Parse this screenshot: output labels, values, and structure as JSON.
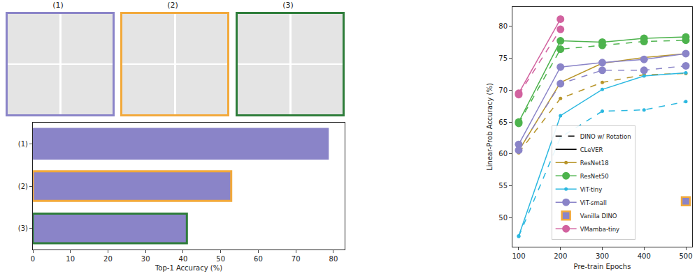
{
  "image_panels": [
    {
      "label": "(1)",
      "color": "#8a84c8"
    },
    {
      "label": "(2)",
      "color": "#f2a93b"
    },
    {
      "label": "(3)",
      "color": "#2e7d3a"
    }
  ],
  "chart_data": [
    {
      "type": "bar",
      "orientation": "horizontal",
      "categories": [
        "(1)",
        "(2)",
        "(3)"
      ],
      "values": [
        78.5,
        52.8,
        41.0
      ],
      "color": "#8a84c8",
      "x_label": "Top-1 Accuracy (%)",
      "xlim": [
        0,
        83
      ],
      "xticks": [
        0,
        10,
        20,
        30,
        40,
        50,
        60,
        70,
        80
      ],
      "grid": false
    },
    {
      "type": "line",
      "x": [
        100,
        200,
        300,
        400,
        500
      ],
      "x_label": "Pre-train Epochs",
      "y_label": "Linear-Prob Accuracy (%)",
      "xlim": [
        85,
        515
      ],
      "xticks": [
        100,
        200,
        300,
        400,
        500
      ],
      "ylim": [
        45.5,
        83
      ],
      "yticks": [
        50,
        55,
        60,
        65,
        70,
        75,
        80
      ],
      "grid": false,
      "legend": "lower center",
      "legend_styles": [
        {
          "name": "DINO w/ Rotation",
          "line_style": "dashed"
        },
        {
          "name": "CLeVER",
          "line_style": "solid"
        }
      ],
      "series": [
        {
          "name": "ResNet18",
          "color": "#b8952a",
          "line_style": "solid",
          "marker": "dot",
          "values": [
            60.5,
            71.2,
            74.2,
            75.1,
            75.7
          ]
        },
        {
          "name": "ResNet18",
          "color": "#b8952a",
          "line_style": "dashed",
          "marker": "dot",
          "values": [
            60.2,
            68.7,
            71.2,
            72.4,
            72.6
          ]
        },
        {
          "name": "ResNet50",
          "color": "#4db34d",
          "line_style": "solid",
          "marker": "circle",
          "values": [
            65.0,
            77.7,
            77.5,
            78.1,
            78.3
          ]
        },
        {
          "name": "ResNet50",
          "color": "#4db34d",
          "line_style": "dashed",
          "marker": "circle",
          "values": [
            64.8,
            76.4,
            77.0,
            77.6,
            77.8
          ]
        },
        {
          "name": "ViT-tiny",
          "color": "#2bb8e0",
          "line_style": "solid",
          "marker": "dot",
          "values": [
            47.2,
            66.0,
            70.1,
            72.2,
            72.7
          ]
        },
        {
          "name": "ViT-tiny",
          "color": "#2bb8e0",
          "line_style": "dashed",
          "marker": "dot",
          "values": [
            47.1,
            62.6,
            66.7,
            66.9,
            68.2
          ]
        },
        {
          "name": "ViT-small",
          "color": "#8a84c8",
          "line_style": "solid",
          "marker": "circle",
          "values": [
            61.5,
            73.6,
            74.3,
            74.8,
            75.7
          ]
        },
        {
          "name": "ViT-small",
          "color": "#8a84c8",
          "line_style": "dashed",
          "marker": "circle",
          "values": [
            60.6,
            71.0,
            73.1,
            73.1,
            73.8
          ]
        },
        {
          "name": "Vanilla DINO",
          "color": "#8a84c8",
          "line_style": "none",
          "marker": "square",
          "values": [
            null,
            null,
            null,
            null,
            52.6
          ]
        },
        {
          "name": "VMamba-tiny",
          "color": "#d2629f",
          "line_style": "solid",
          "marker": "circle",
          "values": [
            69.5,
            81.1,
            null,
            null,
            null
          ]
        },
        {
          "name": "VMamba-tiny",
          "color": "#d2629f",
          "line_style": "dashed",
          "marker": "circle",
          "values": [
            69.3,
            79.5,
            null,
            null,
            null
          ]
        }
      ]
    }
  ]
}
